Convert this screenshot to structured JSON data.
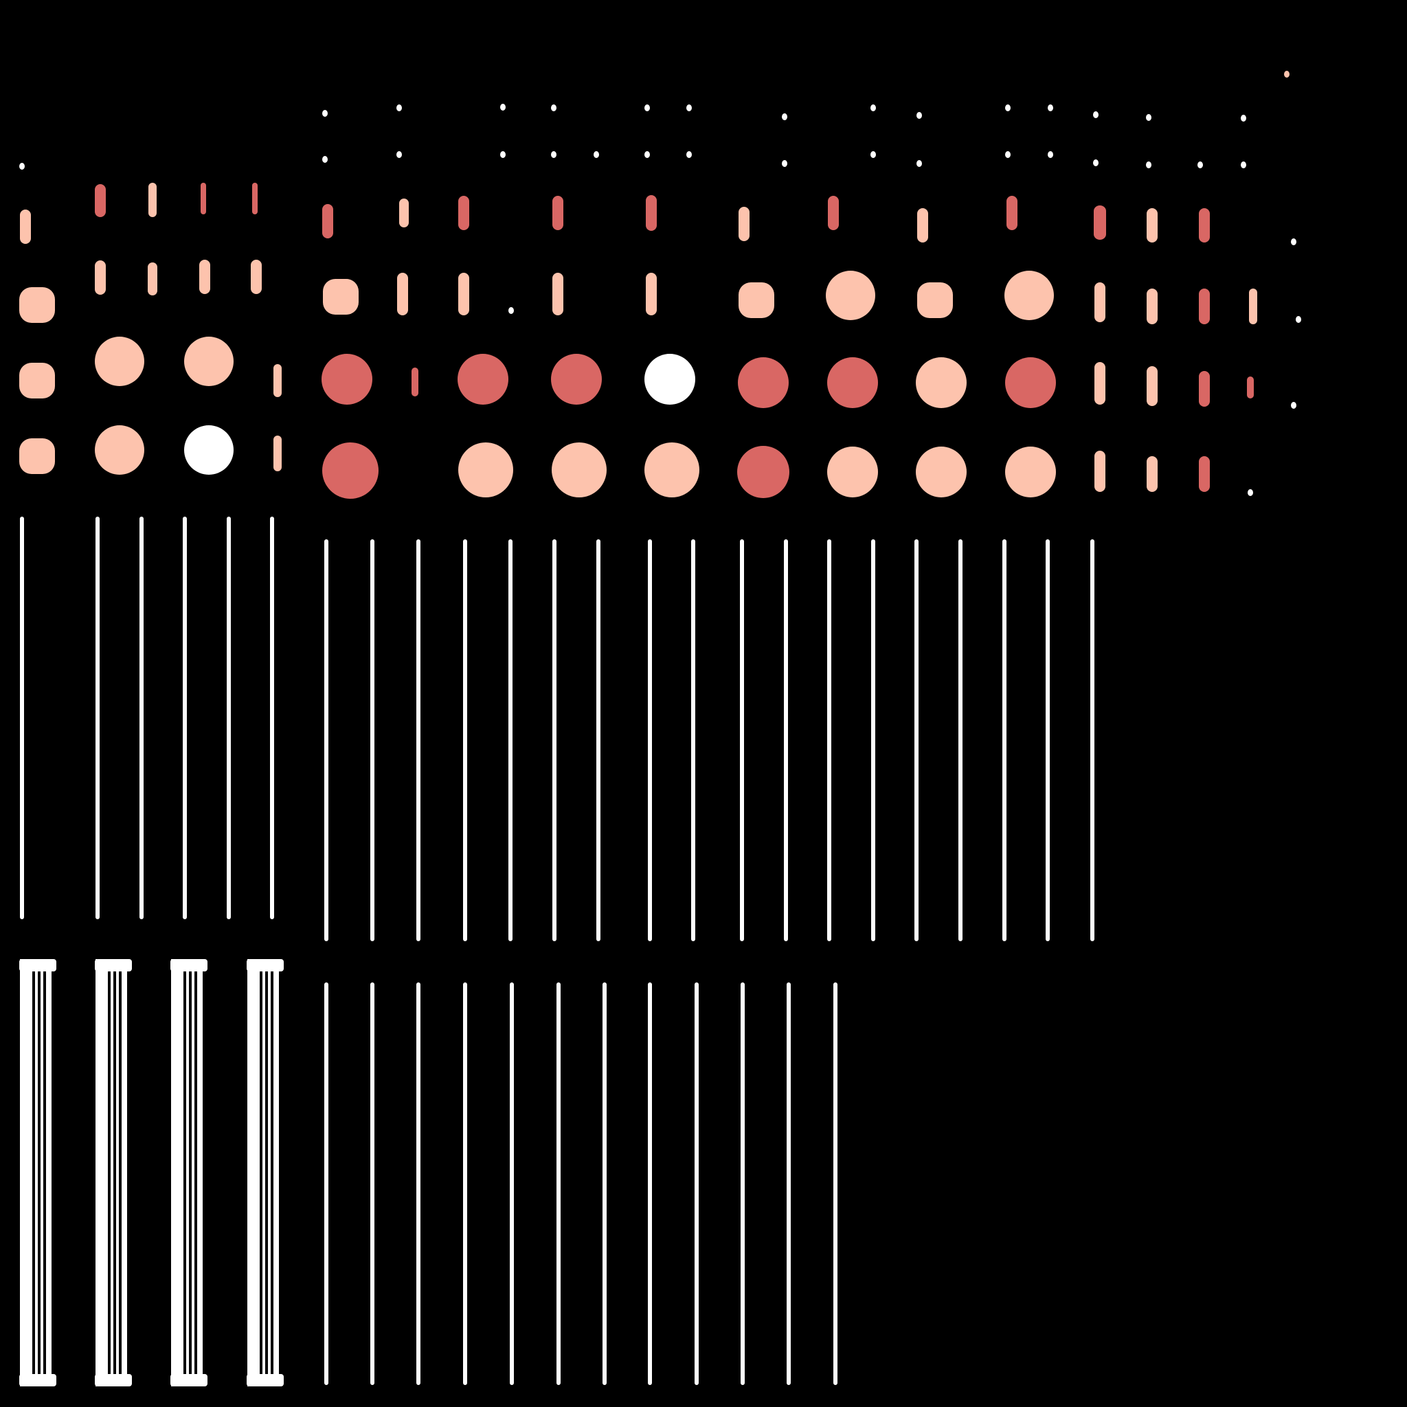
{
  "canvas": {
    "background": "#000000"
  },
  "palette": {
    "white": "#ffffff",
    "peach": "#fdc3ad",
    "coral": "#d96764"
  },
  "groups": [
    {
      "name": "scatter-dots",
      "kind": "tiny dots",
      "count": 37
    },
    {
      "name": "dot-array",
      "kind": "rounded capsules and circles",
      "count": 72
    },
    {
      "name": "upper-line-grid",
      "kind": "thin vertical bars",
      "count": 24
    },
    {
      "name": "bottom-panel-columns",
      "kind": "bracketed column sprites",
      "count": 4
    },
    {
      "name": "lower-line-grid",
      "kind": "thin vertical bars",
      "count": 12
    }
  ]
}
